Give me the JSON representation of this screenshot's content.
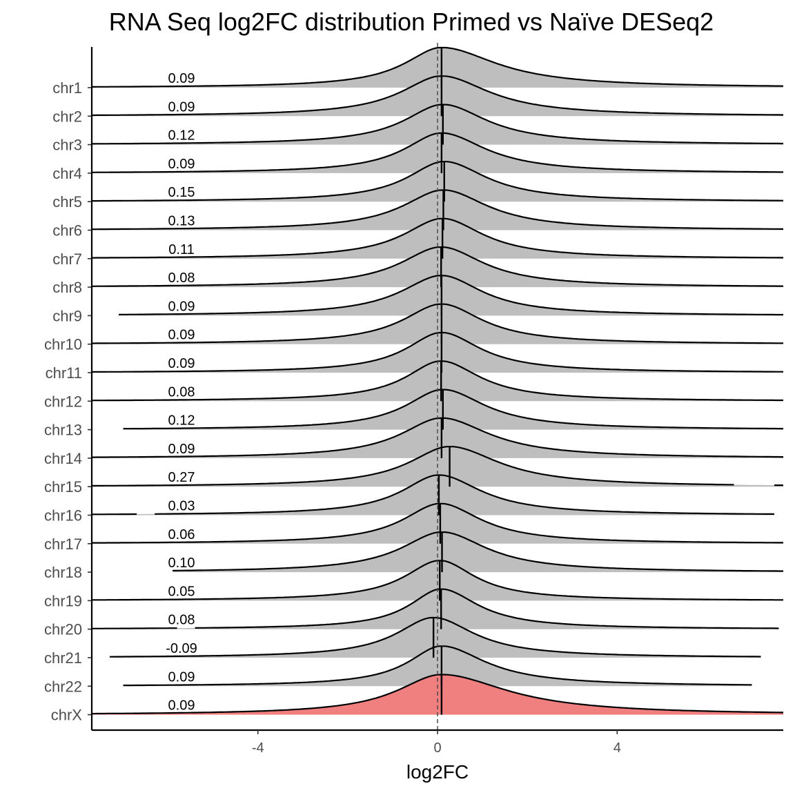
{
  "chart_data": {
    "type": "ridgeline",
    "title": "RNA Seq log2FC distribution Primed vs Naïve DESeq2",
    "xlabel": "log2FC",
    "ylabel": "",
    "xlim": [
      -7.7,
      7.7
    ],
    "xticks": [
      -4,
      0,
      4
    ],
    "xtick_labels": [
      "-4",
      "0",
      "4"
    ],
    "reference_line_x": 0,
    "fill_color": "#bebebe",
    "highlight_fill_color": "#f08080",
    "line_color": "#000000",
    "series": [
      {
        "name": "chr1",
        "median": 0.09,
        "label": "0.09",
        "xmin": -7.7,
        "xmax": 7.7,
        "left_spread": 1.0,
        "right_spread": 1.5,
        "gaps": []
      },
      {
        "name": "chr2",
        "median": 0.09,
        "label": "0.09",
        "xmin": -7.7,
        "xmax": 7.7,
        "left_spread": 1.1,
        "right_spread": 1.3,
        "gaps": []
      },
      {
        "name": "chr3",
        "median": 0.12,
        "label": "0.12",
        "xmin": -7.7,
        "xmax": 7.7,
        "left_spread": 1.05,
        "right_spread": 1.2,
        "gaps": []
      },
      {
        "name": "chr4",
        "median": 0.09,
        "label": "0.09",
        "xmin": -7.7,
        "xmax": 7.7,
        "left_spread": 1.0,
        "right_spread": 1.2,
        "gaps": []
      },
      {
        "name": "chr5",
        "median": 0.15,
        "label": "0.15",
        "xmin": -7.7,
        "xmax": 7.7,
        "left_spread": 1.0,
        "right_spread": 1.15,
        "gaps": []
      },
      {
        "name": "chr6",
        "median": 0.13,
        "label": "0.13",
        "xmin": -7.7,
        "xmax": 7.7,
        "left_spread": 1.1,
        "right_spread": 1.2,
        "gaps": []
      },
      {
        "name": "chr7",
        "median": 0.11,
        "label": "0.11",
        "xmin": -7.7,
        "xmax": 7.7,
        "left_spread": 1.05,
        "right_spread": 1.1,
        "gaps": []
      },
      {
        "name": "chr8",
        "median": 0.08,
        "label": "0.08",
        "xmin": -7.7,
        "xmax": 7.7,
        "left_spread": 1.1,
        "right_spread": 1.15,
        "gaps": []
      },
      {
        "name": "chr9",
        "median": 0.09,
        "label": "0.09",
        "xmin": -7.1,
        "xmax": 7.7,
        "left_spread": 1.1,
        "right_spread": 1.1,
        "gaps": []
      },
      {
        "name": "chr10",
        "median": 0.09,
        "label": "0.09",
        "xmin": -7.7,
        "xmax": 7.7,
        "left_spread": 1.05,
        "right_spread": 1.1,
        "gaps": []
      },
      {
        "name": "chr11",
        "median": 0.09,
        "label": "0.09",
        "xmin": -7.7,
        "xmax": 7.7,
        "left_spread": 0.95,
        "right_spread": 1.05,
        "gaps": []
      },
      {
        "name": "chr12",
        "median": 0.08,
        "label": "0.08",
        "xmin": -7.7,
        "xmax": 7.7,
        "left_spread": 0.95,
        "right_spread": 1.05,
        "gaps": []
      },
      {
        "name": "chr13",
        "median": 0.12,
        "label": "0.12",
        "xmin": -7.0,
        "xmax": 7.7,
        "left_spread": 1.0,
        "right_spread": 1.15,
        "gaps": []
      },
      {
        "name": "chr14",
        "median": 0.09,
        "label": "0.09",
        "xmin": -7.7,
        "xmax": 7.7,
        "left_spread": 1.1,
        "right_spread": 1.3,
        "gaps": []
      },
      {
        "name": "chr15",
        "median": 0.27,
        "label": "0.27",
        "xmin": -7.7,
        "xmax": 7.7,
        "left_spread": 1.1,
        "right_spread": 1.35,
        "gaps": [
          [
            6.6,
            7.5
          ]
        ]
      },
      {
        "name": "chr16",
        "median": 0.03,
        "label": "0.03",
        "xmin": -7.7,
        "xmax": 7.5,
        "left_spread": 1.0,
        "right_spread": 1.15,
        "gaps": [
          [
            -6.7,
            -6.3
          ]
        ]
      },
      {
        "name": "chr17",
        "median": 0.06,
        "label": "0.06",
        "xmin": -7.7,
        "xmax": 7.7,
        "left_spread": 1.0,
        "right_spread": 1.1,
        "gaps": []
      },
      {
        "name": "chr18",
        "median": 0.1,
        "label": "0.10",
        "xmin": -5.9,
        "xmax": 7.7,
        "left_spread": 1.1,
        "right_spread": 1.2,
        "gaps": []
      },
      {
        "name": "chr19",
        "median": 0.05,
        "label": "0.05",
        "xmin": -7.7,
        "xmax": 7.7,
        "left_spread": 0.95,
        "right_spread": 0.95,
        "gaps": []
      },
      {
        "name": "chr20",
        "median": 0.08,
        "label": "0.08",
        "xmin": -7.7,
        "xmax": 7.6,
        "left_spread": 0.85,
        "right_spread": 1.0,
        "gaps": [
          [
            -5.8,
            -5.4
          ]
        ]
      },
      {
        "name": "chr21",
        "median": -0.09,
        "label": "-0.09",
        "xmin": -7.3,
        "xmax": 7.2,
        "left_spread": 1.0,
        "right_spread": 1.1,
        "gaps": []
      },
      {
        "name": "chr22",
        "median": 0.09,
        "label": "0.09",
        "xmin": -7.0,
        "xmax": 7.0,
        "left_spread": 0.9,
        "right_spread": 1.2,
        "gaps": []
      },
      {
        "name": "chrX",
        "median": 0.09,
        "label": "0.09",
        "xmin": -7.7,
        "xmax": 7.7,
        "left_spread": 1.2,
        "right_spread": 1.8,
        "gaps": [],
        "highlight": true
      }
    ]
  }
}
